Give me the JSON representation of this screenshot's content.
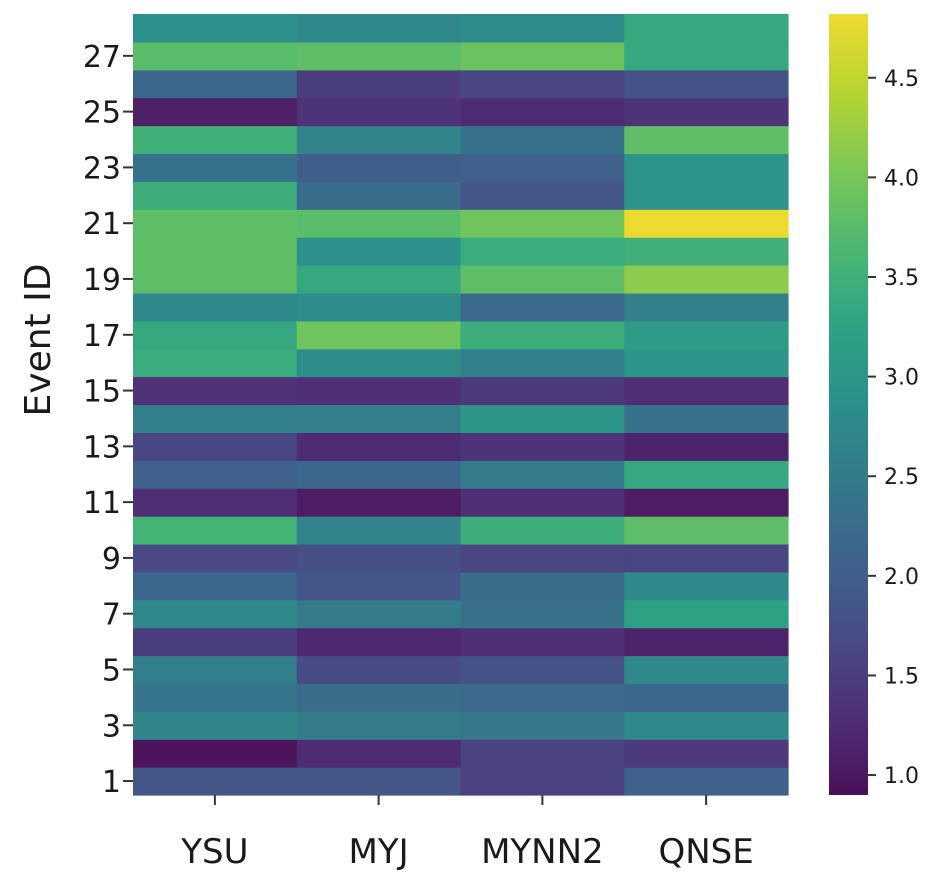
{
  "chart_data": {
    "type": "heatmap",
    "title": "",
    "xlabel": "",
    "ylabel": "Event ID",
    "columns": [
      "YSU",
      "MYJ",
      "MYNN2",
      "QNSE"
    ],
    "rows": [
      1,
      2,
      3,
      4,
      5,
      6,
      7,
      8,
      9,
      10,
      11,
      12,
      13,
      14,
      15,
      16,
      17,
      18,
      19,
      20,
      21,
      22,
      23,
      24,
      25,
      26,
      27,
      28
    ],
    "ytick_labels": [
      "1",
      "3",
      "5",
      "7",
      "9",
      "11",
      "13",
      "15",
      "17",
      "19",
      "21",
      "23",
      "25",
      "27"
    ],
    "ytick_rows": [
      1,
      3,
      5,
      7,
      9,
      11,
      13,
      15,
      17,
      19,
      21,
      23,
      25,
      27
    ],
    "values": [
      [
        1.85,
        1.85,
        1.55,
        2.05
      ],
      [
        0.95,
        1.25,
        1.55,
        1.45
      ],
      [
        2.7,
        2.5,
        2.45,
        2.75
      ],
      [
        2.4,
        2.25,
        2.2,
        2.15
      ],
      [
        2.55,
        1.7,
        1.8,
        2.75
      ],
      [
        1.5,
        1.2,
        1.3,
        1.15
      ],
      [
        2.75,
        2.5,
        2.3,
        3.2
      ],
      [
        2.15,
        1.85,
        2.25,
        2.75
      ],
      [
        1.65,
        1.75,
        1.6,
        1.6
      ],
      [
        3.55,
        2.65,
        3.45,
        3.8
      ],
      [
        1.3,
        1.05,
        1.3,
        1.05
      ],
      [
        2.05,
        2.15,
        2.5,
        3.35
      ],
      [
        1.6,
        1.25,
        1.35,
        1.15
      ],
      [
        2.6,
        2.55,
        3.0,
        2.35
      ],
      [
        1.35,
        1.3,
        1.45,
        1.3
      ],
      [
        3.4,
        2.8,
        2.6,
        2.95
      ],
      [
        3.35,
        3.95,
        3.45,
        3.1
      ],
      [
        2.75,
        2.85,
        2.2,
        2.6
      ],
      [
        3.8,
        3.35,
        3.8,
        4.15
      ],
      [
        3.8,
        2.9,
        3.4,
        3.5
      ],
      [
        3.8,
        3.75,
        3.95,
        4.8
      ],
      [
        3.45,
        2.25,
        1.85,
        2.95
      ],
      [
        2.35,
        2.0,
        2.05,
        2.95
      ],
      [
        3.5,
        2.65,
        2.35,
        3.8
      ],
      [
        1.1,
        1.35,
        1.25,
        1.35
      ],
      [
        2.15,
        1.5,
        1.6,
        1.8
      ],
      [
        3.75,
        3.8,
        3.9,
        3.35
      ],
      [
        2.9,
        2.75,
        2.8,
        3.35
      ]
    ],
    "colorbar": {
      "min": 0.9,
      "max": 4.82,
      "ticks": [
        1.0,
        1.5,
        2.0,
        2.5,
        3.0,
        3.5,
        4.0,
        4.5
      ],
      "tick_labels": [
        "1.0",
        "1.5",
        "2.0",
        "2.5",
        "3.0",
        "3.5",
        "4.0",
        "4.5"
      ]
    },
    "colormap": "viridis",
    "grid": false,
    "legend": "colorbar-right"
  }
}
